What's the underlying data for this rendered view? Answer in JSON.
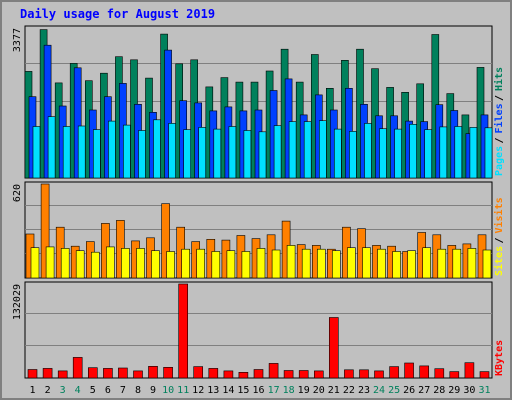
{
  "chart_data": [
    {
      "type": "bar",
      "title": "Daily usage for August 2019",
      "categories": [
        "1",
        "2",
        "3",
        "4",
        "5",
        "6",
        "7",
        "8",
        "9",
        "10",
        "11",
        "12",
        "13",
        "14",
        "15",
        "16",
        "17",
        "18",
        "19",
        "20",
        "21",
        "22",
        "23",
        "24",
        "25",
        "26",
        "27",
        "28",
        "29",
        "30",
        "31"
      ],
      "weekend_categories": [
        "3",
        "4",
        "10",
        "11",
        "17",
        "18",
        "24",
        "25",
        "31"
      ],
      "ylabel_max": "3377",
      "ylim": [
        0,
        3377
      ],
      "grid": true,
      "legend": "right-vertical",
      "series": [
        {
          "name": "Hits",
          "color": "#00805c",
          "values": [
            2400,
            3340,
            2140,
            2580,
            2190,
            2360,
            2730,
            2660,
            2250,
            3240,
            2570,
            2660,
            2050,
            2260,
            2160,
            2160,
            2410,
            2900,
            2160,
            2780,
            2020,
            2650,
            2900,
            2460,
            2040,
            1930,
            2120,
            3230,
            1900,
            1420,
            2490
          ]
        },
        {
          "name": "Files",
          "color": "#0040ff",
          "values": [
            1830,
            2990,
            1620,
            2480,
            1530,
            1830,
            2130,
            1660,
            1480,
            2880,
            1740,
            1690,
            1510,
            1600,
            1510,
            1530,
            1970,
            2230,
            1420,
            1870,
            1530,
            2020,
            1660,
            1400,
            1400,
            1280,
            1270,
            1650,
            1520,
            1000,
            1420
          ]
        },
        {
          "name": "Pages",
          "color": "#00e0ff",
          "values": [
            1160,
            1380,
            1160,
            1170,
            1090,
            1280,
            1190,
            1070,
            1310,
            1230,
            1090,
            1140,
            1100,
            1160,
            1070,
            1040,
            1180,
            1270,
            1270,
            1290,
            1100,
            1050,
            1230,
            1110,
            1100,
            1210,
            1090,
            1150,
            1160,
            1140,
            1130
          ]
        }
      ]
    },
    {
      "type": "bar",
      "categories": [
        "1",
        "2",
        "3",
        "4",
        "5",
        "6",
        "7",
        "8",
        "9",
        "10",
        "11",
        "12",
        "13",
        "14",
        "15",
        "16",
        "17",
        "18",
        "19",
        "20",
        "21",
        "22",
        "23",
        "24",
        "25",
        "26",
        "27",
        "28",
        "29",
        "30",
        "31"
      ],
      "ylabel_max": "620",
      "ylim": [
        0,
        620
      ],
      "grid": true,
      "legend": "right-vertical",
      "series": [
        {
          "name": "Visits",
          "color": "#ff8000",
          "values": [
            290,
            620,
            335,
            210,
            240,
            360,
            380,
            245,
            265,
            490,
            335,
            240,
            255,
            250,
            280,
            260,
            285,
            375,
            220,
            215,
            190,
            335,
            325,
            215,
            210,
            175,
            300,
            285,
            215,
            225,
            285
          ]
        },
        {
          "name": "Sites",
          "color": "#ffff00",
          "values": [
            200,
            205,
            195,
            180,
            170,
            205,
            195,
            195,
            180,
            175,
            190,
            190,
            175,
            180,
            175,
            195,
            185,
            215,
            190,
            190,
            180,
            200,
            200,
            190,
            175,
            180,
            200,
            190,
            190,
            195,
            185
          ]
        }
      ]
    },
    {
      "type": "bar",
      "categories": [
        "1",
        "2",
        "3",
        "4",
        "5",
        "6",
        "7",
        "8",
        "9",
        "10",
        "11",
        "12",
        "13",
        "14",
        "15",
        "16",
        "17",
        "18",
        "19",
        "20",
        "21",
        "22",
        "23",
        "24",
        "25",
        "26",
        "27",
        "28",
        "29",
        "30",
        "31"
      ],
      "ylabel_max": "132029",
      "ylim": [
        0,
        132029
      ],
      "grid": true,
      "legend": "right-vertical",
      "series": [
        {
          "name": "KBytes",
          "color": "#ff0000",
          "values": [
            12000,
            13500,
            10000,
            29000,
            14500,
            13500,
            14000,
            10000,
            16500,
            15000,
            132029,
            16000,
            13500,
            10000,
            8000,
            12000,
            20500,
            10500,
            10500,
            10000,
            85000,
            11500,
            11500,
            10000,
            16000,
            21000,
            17000,
            13000,
            9000,
            21500,
            9000
          ]
        }
      ]
    }
  ]
}
